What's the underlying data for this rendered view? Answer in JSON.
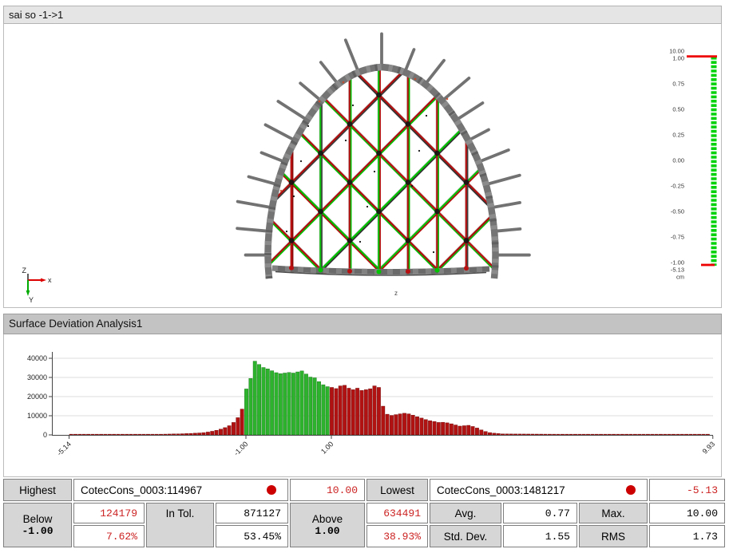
{
  "viewport": {
    "title": "sai so -1->1",
    "model_axis_label": "z",
    "triad": {
      "x": "x",
      "y": "Y",
      "z": "Z"
    },
    "colorbar": {
      "unit": "cm",
      "tick_labels": [
        "10.00",
        "1.00",
        "0.75",
        "0.50",
        "0.25",
        "0.00",
        "-0.25",
        "-0.50",
        "-0.75",
        "-1.00",
        "-5.13"
      ],
      "bar_color": "#00d20a",
      "out_of_range_color": "#ee0000"
    },
    "deviation_colors": {
      "in_tolerance": "#00c400",
      "out_tolerance": "#b81010",
      "reference": "#787878"
    }
  },
  "histogram_panel": {
    "title": "Surface Deviation Analysis1"
  },
  "chart_data": {
    "type": "histogram-bar",
    "title": "Surface Deviation Analysis1",
    "x_min": -5.14,
    "x_max": 9.93,
    "bin_width": 0.1,
    "x_tick_values": [
      -5.14,
      -1.0,
      1.0,
      9.93
    ],
    "x_tick_labels": [
      "-5.14",
      "-1.00",
      "1.00",
      "9.93"
    ],
    "y_ticks": [
      0,
      10000,
      20000,
      30000,
      40000
    ],
    "ylim": [
      0,
      40000
    ],
    "tolerance": [
      -1.0,
      1.0
    ],
    "in_tolerance_color": "#2db32d",
    "out_tolerance_color": "#b11212",
    "counts": [
      150,
      150,
      160,
      160,
      170,
      170,
      180,
      180,
      190,
      190,
      200,
      200,
      210,
      220,
      230,
      240,
      250,
      260,
      280,
      300,
      330,
      370,
      410,
      450,
      500,
      550,
      610,
      690,
      790,
      900,
      1020,
      1200,
      1500,
      1900,
      2400,
      3000,
      3800,
      4800,
      6500,
      9000,
      13500,
      24000,
      29500,
      38500,
      36800,
      35200,
      34500,
      33500,
      32500,
      32000,
      32300,
      32600,
      32300,
      32900,
      33400,
      31800,
      30200,
      29800,
      27800,
      26200,
      25200,
      24800,
      24200,
      25600,
      25900,
      24400,
      23600,
      24400,
      23200,
      23600,
      24100,
      25600,
      24800,
      15000,
      10800,
      10200,
      10600,
      11000,
      11300,
      11000,
      10300,
      9500,
      8800,
      8000,
      7400,
      7000,
      6500,
      6600,
      6300,
      5800,
      5200,
      4600,
      4800,
      5000,
      4400,
      3600,
      2600,
      1800,
      1200,
      900,
      700,
      520,
      500,
      480,
      470,
      460,
      450,
      440,
      430,
      420,
      410,
      400,
      390,
      380,
      370,
      360,
      350,
      345,
      340,
      335,
      330,
      325,
      320,
      315,
      310,
      305,
      300,
      295,
      290,
      285,
      280,
      275,
      270,
      265,
      260,
      255,
      250,
      245,
      240,
      235,
      230,
      225,
      220,
      215,
      210,
      205,
      200,
      200,
      200,
      200
    ]
  },
  "stats_table": {
    "highest": {
      "label": "Highest",
      "name": "CotecCons_0003:114967",
      "value": "10.00"
    },
    "lowest": {
      "label": "Lowest",
      "name": "CotecCons_0003:1481217",
      "value": "-5.13"
    },
    "below": {
      "label": "Below",
      "threshold": "-1.00",
      "count": "124179",
      "percent": "7.62%"
    },
    "in_tol": {
      "label": "In Tol.",
      "count": "871127",
      "percent": "53.45%"
    },
    "above": {
      "label": "Above",
      "threshold": "1.00",
      "count": "634491",
      "percent": "38.93%"
    },
    "avg": {
      "label": "Avg.",
      "value": "0.77"
    },
    "std_dev": {
      "label": "Std. Dev.",
      "value": "1.55"
    },
    "max": {
      "label": "Max.",
      "value": "10.00"
    },
    "rms": {
      "label": "RMS",
      "value": "1.73"
    }
  }
}
